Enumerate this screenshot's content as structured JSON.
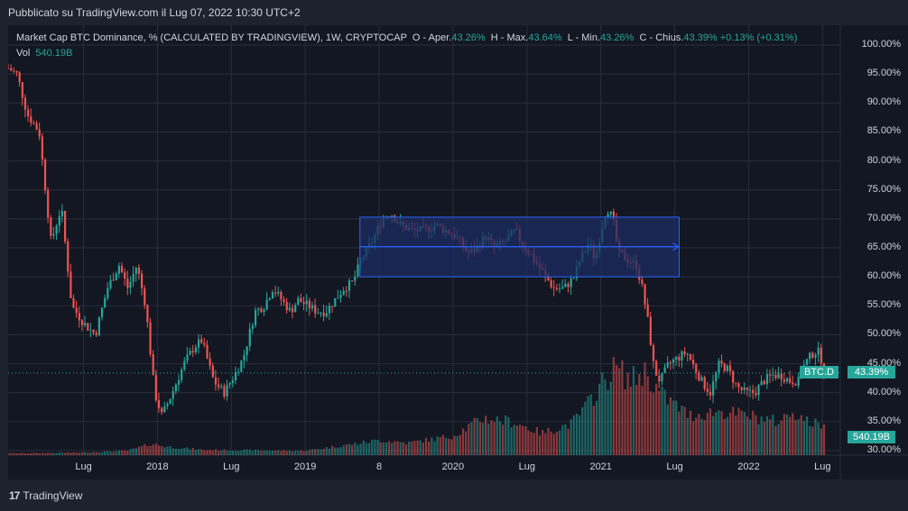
{
  "header": {
    "published": "Pubblicato su TradingView.com il Lug 07, 2022 10:30 UTC+2"
  },
  "legend": {
    "title": "Market Cap BTC Dominance, % (CALCULATED BY TRADINGVIEW), 1W, CRYPTOCAP",
    "o_label": "O - Aper.",
    "o_val": "43.26%",
    "h_label": "H - Max.",
    "h_val": "43.64%",
    "l_label": "L - Min.",
    "l_val": "43.26%",
    "c_label": "C - Chius.",
    "c_val": "43.39%",
    "change": "+0.13% (+0.31%)",
    "vol_label": "Vol",
    "vol_val": "540.19B"
  },
  "tags": {
    "symbol": "BTC.D",
    "price": "43.39%",
    "volume": "540.19B"
  },
  "colors": {
    "up": "#26a69a",
    "down": "#ef5350",
    "box_fill": "#1c2c63",
    "box_line": "#2962ff"
  },
  "footer": {
    "brand": "TradingView",
    "logo_mark": "17"
  },
  "chart_data": {
    "type": "candlestick",
    "title": "Market Cap BTC Dominance, % (CALCULATED BY TRADINGVIEW), 1W, CRYPTOCAP",
    "y_unit": "%",
    "ylim": [
      29.5,
      101
    ],
    "y_ticks": [
      "100.00%",
      "95.00%",
      "90.00%",
      "85.00%",
      "80.00%",
      "75.00%",
      "70.00%",
      "65.00%",
      "60.00%",
      "55.00%",
      "50.00%",
      "45.00%",
      "40.00%",
      "35.00%",
      "30.00%"
    ],
    "x_ticks": [
      {
        "label": "Lug",
        "t": 2017.5
      },
      {
        "label": "2018",
        "t": 2018.0
      },
      {
        "label": "Lug",
        "t": 2018.5
      },
      {
        "label": "2019",
        "t": 2019.0
      },
      {
        "label": "8",
        "t": 2019.5
      },
      {
        "label": "2020",
        "t": 2020.0
      },
      {
        "label": "Lug",
        "t": 2020.5
      },
      {
        "label": "2021",
        "t": 2021.0
      },
      {
        "label": "Lug",
        "t": 2021.5
      },
      {
        "label": "2022",
        "t": 2022.0
      },
      {
        "label": "Lug",
        "t": 2022.5
      }
    ],
    "xlim": [
      2016.99,
      2022.62
    ],
    "dominance_path": [
      {
        "t": 2016.99,
        "v": 96
      },
      {
        "t": 2017.05,
        "v": 95
      },
      {
        "t": 2017.12,
        "v": 88
      },
      {
        "t": 2017.2,
        "v": 85
      },
      {
        "t": 2017.28,
        "v": 66
      },
      {
        "t": 2017.35,
        "v": 72
      },
      {
        "t": 2017.42,
        "v": 55
      },
      {
        "t": 2017.5,
        "v": 52
      },
      {
        "t": 2017.58,
        "v": 50
      },
      {
        "t": 2017.66,
        "v": 58
      },
      {
        "t": 2017.74,
        "v": 62
      },
      {
        "t": 2017.8,
        "v": 58
      },
      {
        "t": 2017.86,
        "v": 62
      },
      {
        "t": 2017.92,
        "v": 55
      },
      {
        "t": 2017.98,
        "v": 40
      },
      {
        "t": 2018.03,
        "v": 36
      },
      {
        "t": 2018.1,
        "v": 40
      },
      {
        "t": 2018.18,
        "v": 45
      },
      {
        "t": 2018.25,
        "v": 48
      },
      {
        "t": 2018.3,
        "v": 49
      },
      {
        "t": 2018.38,
        "v": 42
      },
      {
        "t": 2018.45,
        "v": 40
      },
      {
        "t": 2018.52,
        "v": 43
      },
      {
        "t": 2018.58,
        "v": 46
      },
      {
        "t": 2018.66,
        "v": 54
      },
      {
        "t": 2018.72,
        "v": 55
      },
      {
        "t": 2018.78,
        "v": 58
      },
      {
        "t": 2018.84,
        "v": 56
      },
      {
        "t": 2018.9,
        "v": 54
      },
      {
        "t": 2018.95,
        "v": 56
      },
      {
        "t": 2019.02,
        "v": 55
      },
      {
        "t": 2019.08,
        "v": 54
      },
      {
        "t": 2019.14,
        "v": 54
      },
      {
        "t": 2019.2,
        "v": 56
      },
      {
        "t": 2019.26,
        "v": 58
      },
      {
        "t": 2019.32,
        "v": 59
      },
      {
        "t": 2019.38,
        "v": 63
      },
      {
        "t": 2019.45,
        "v": 66
      },
      {
        "t": 2019.52,
        "v": 70
      },
      {
        "t": 2019.58,
        "v": 71
      },
      {
        "t": 2019.64,
        "v": 69
      },
      {
        "t": 2019.72,
        "v": 68
      },
      {
        "t": 2019.8,
        "v": 68
      },
      {
        "t": 2019.88,
        "v": 69
      },
      {
        "t": 2019.95,
        "v": 68
      },
      {
        "t": 2020.02,
        "v": 67
      },
      {
        "t": 2020.1,
        "v": 64
      },
      {
        "t": 2020.16,
        "v": 65
      },
      {
        "t": 2020.22,
        "v": 67
      },
      {
        "t": 2020.28,
        "v": 65
      },
      {
        "t": 2020.35,
        "v": 66
      },
      {
        "t": 2020.42,
        "v": 68
      },
      {
        "t": 2020.46,
        "v": 66
      },
      {
        "t": 2020.52,
        "v": 64
      },
      {
        "t": 2020.6,
        "v": 61
      },
      {
        "t": 2020.68,
        "v": 58
      },
      {
        "t": 2020.75,
        "v": 58
      },
      {
        "t": 2020.82,
        "v": 60
      },
      {
        "t": 2020.86,
        "v": 63
      },
      {
        "t": 2020.92,
        "v": 66
      },
      {
        "t": 2020.96,
        "v": 63
      },
      {
        "t": 2021.0,
        "v": 68
      },
      {
        "t": 2021.04,
        "v": 72
      },
      {
        "t": 2021.08,
        "v": 70
      },
      {
        "t": 2021.12,
        "v": 64
      },
      {
        "t": 2021.18,
        "v": 63
      },
      {
        "t": 2021.24,
        "v": 62
      },
      {
        "t": 2021.28,
        "v": 58
      },
      {
        "t": 2021.32,
        "v": 52
      },
      {
        "t": 2021.36,
        "v": 44
      },
      {
        "t": 2021.4,
        "v": 42
      },
      {
        "t": 2021.46,
        "v": 45
      },
      {
        "t": 2021.52,
        "v": 46
      },
      {
        "t": 2021.58,
        "v": 47
      },
      {
        "t": 2021.62,
        "v": 45
      },
      {
        "t": 2021.68,
        "v": 42
      },
      {
        "t": 2021.74,
        "v": 40
      },
      {
        "t": 2021.8,
        "v": 45
      },
      {
        "t": 2021.86,
        "v": 44
      },
      {
        "t": 2021.92,
        "v": 41
      },
      {
        "t": 2021.98,
        "v": 40
      },
      {
        "t": 2022.04,
        "v": 40
      },
      {
        "t": 2022.1,
        "v": 42
      },
      {
        "t": 2022.16,
        "v": 43
      },
      {
        "t": 2022.22,
        "v": 43
      },
      {
        "t": 2022.28,
        "v": 42
      },
      {
        "t": 2022.34,
        "v": 42
      },
      {
        "t": 2022.38,
        "v": 45
      },
      {
        "t": 2022.44,
        "v": 47
      },
      {
        "t": 2022.48,
        "v": 47
      },
      {
        "t": 2022.51,
        "v": 43.39
      }
    ],
    "volume_path": [
      {
        "t": 2016.99,
        "v": 0.02
      },
      {
        "t": 2017.5,
        "v": 0.03
      },
      {
        "t": 2017.8,
        "v": 0.05
      },
      {
        "t": 2017.96,
        "v": 0.13
      },
      {
        "t": 2018.05,
        "v": 0.1
      },
      {
        "t": 2018.3,
        "v": 0.06
      },
      {
        "t": 2018.9,
        "v": 0.05
      },
      {
        "t": 2019.0,
        "v": 0.05
      },
      {
        "t": 2019.3,
        "v": 0.12
      },
      {
        "t": 2019.5,
        "v": 0.17
      },
      {
        "t": 2019.7,
        "v": 0.14
      },
      {
        "t": 2020.0,
        "v": 0.22
      },
      {
        "t": 2020.2,
        "v": 0.42
      },
      {
        "t": 2020.4,
        "v": 0.38
      },
      {
        "t": 2020.6,
        "v": 0.25
      },
      {
        "t": 2020.8,
        "v": 0.36
      },
      {
        "t": 2020.9,
        "v": 0.55
      },
      {
        "t": 2021.0,
        "v": 0.8
      },
      {
        "t": 2021.1,
        "v": 1.0
      },
      {
        "t": 2021.2,
        "v": 0.85
      },
      {
        "t": 2021.3,
        "v": 0.95
      },
      {
        "t": 2021.4,
        "v": 0.7
      },
      {
        "t": 2021.6,
        "v": 0.45
      },
      {
        "t": 2021.8,
        "v": 0.5
      },
      {
        "t": 2022.0,
        "v": 0.45
      },
      {
        "t": 2022.2,
        "v": 0.38
      },
      {
        "t": 2022.3,
        "v": 0.5
      },
      {
        "t": 2022.4,
        "v": 0.38
      },
      {
        "t": 2022.51,
        "v": 0.33
      }
    ],
    "rectangle": {
      "t_start": 2019.37,
      "t_end": 2021.53,
      "v_low": 60.0,
      "v_high": 70.3
    },
    "arrow": {
      "t_start": 2019.37,
      "t_end": 2021.53,
      "v": 65.2
    },
    "last_price": 43.39,
    "last_volume": "540.19B"
  }
}
